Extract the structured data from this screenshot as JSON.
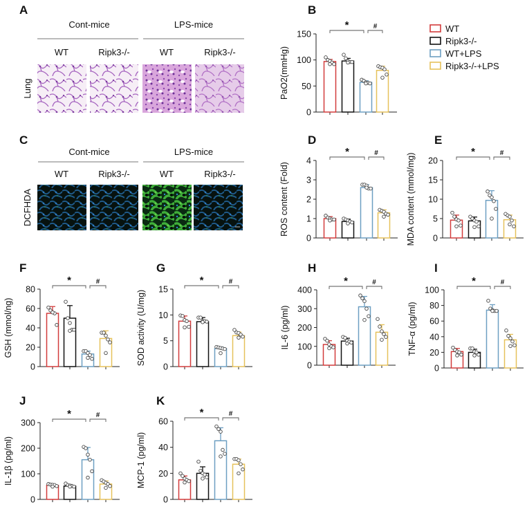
{
  "panels": {
    "A": {
      "label": "A",
      "groups": [
        "Cont-mice",
        "LPS-mice"
      ],
      "columns": [
        "WT",
        "Ripk3-/-",
        "WT",
        "Ripk3-/-"
      ],
      "row_label": "Lung"
    },
    "C": {
      "label": "C",
      "groups": [
        "Cont-mice",
        "LPS-mice"
      ],
      "columns": [
        "WT",
        "Ripk3-/-",
        "WT",
        "Ripk3-/-"
      ],
      "row_label": "DCFHDA"
    }
  },
  "legend": [
    {
      "label": "WT",
      "color": "#d23b3b"
    },
    {
      "label": "Ripk3-/-",
      "color": "#111111"
    },
    {
      "label": "WT+LPS",
      "color": "#6d9fc2"
    },
    {
      "label": "Ripk3-/-+LPS",
      "color": "#e6c15a"
    }
  ],
  "chart_data": [
    {
      "panel": "B",
      "type": "bar",
      "ylabel": "PaO2(mmHg)",
      "ylim": [
        0,
        150
      ],
      "yticks": [
        0,
        50,
        100,
        150
      ],
      "categories": [
        "WT",
        "Ripk3-/-",
        "WT+LPS",
        "Ripk3-/-+LPS"
      ],
      "values": [
        97,
        98,
        57,
        80
      ],
      "errors": [
        4,
        5,
        3,
        8
      ],
      "points": [
        [
          105,
          100,
          98,
          95,
          92,
          92
        ],
        [
          110,
          103,
          98,
          96,
          96,
          95
        ],
        [
          62,
          60,
          57,
          56,
          55,
          55
        ],
        [
          88,
          86,
          85,
          82,
          72,
          66
        ]
      ],
      "significance": [
        {
          "from": 0,
          "to": 2,
          "mark": "*"
        },
        {
          "from": 2,
          "to": 3,
          "mark": "#"
        }
      ]
    },
    {
      "panel": "D",
      "type": "bar",
      "ylabel": "ROS content (Fold)",
      "ylim": [
        0,
        4
      ],
      "yticks": [
        0,
        1,
        2,
        3,
        4
      ],
      "categories": [
        "WT",
        "Ripk3-/-",
        "WT+LPS",
        "Ripk3-/-+LPS"
      ],
      "values": [
        1.0,
        0.85,
        2.6,
        1.3
      ],
      "errors": [
        0.1,
        0.12,
        0.15,
        0.15
      ],
      "points": [
        [
          1.15,
          1.05,
          1.0,
          0.95,
          0.95,
          0.9
        ],
        [
          1.0,
          0.95,
          0.9,
          0.85,
          0.8,
          0.75
        ],
        [
          2.75,
          2.75,
          2.7,
          2.55,
          2.55,
          2.6
        ],
        [
          1.45,
          1.4,
          1.35,
          1.25,
          1.2,
          1.1
        ]
      ],
      "significance": [
        {
          "from": 0,
          "to": 2,
          "mark": "*"
        },
        {
          "from": 2,
          "to": 3,
          "mark": "#"
        }
      ]
    },
    {
      "panel": "E",
      "type": "bar",
      "ylabel": "MDA content (mmol/mg)",
      "ylim": [
        0,
        20
      ],
      "yticks": [
        0,
        5,
        10,
        15,
        20
      ],
      "categories": [
        "WT",
        "Ripk3-/-",
        "WT+LPS",
        "Ripk3-/-+LPS"
      ],
      "values": [
        4.6,
        4.4,
        9.7,
        4.7
      ],
      "errors": [
        1.3,
        1.0,
        2.5,
        1.2
      ],
      "points": [
        [
          6.5,
          5.5,
          4.8,
          4.5,
          3.2,
          3.0
        ],
        [
          5.5,
          5.0,
          4.5,
          4.2,
          3.0,
          2.8
        ],
        [
          12,
          11,
          10.5,
          9.5,
          7.5,
          5.0
        ],
        [
          6.2,
          5.8,
          5.5,
          4.5,
          3.0,
          3.5
        ]
      ],
      "significance": [
        {
          "from": 0,
          "to": 2,
          "mark": "*"
        },
        {
          "from": 2,
          "to": 3,
          "mark": "#"
        }
      ]
    },
    {
      "panel": "F",
      "type": "bar",
      "ylabel": "GSH  (mmol/ng)",
      "ylim": [
        0,
        80
      ],
      "yticks": [
        0,
        20,
        40,
        60,
        80
      ],
      "categories": [
        "WT",
        "Ripk3-/-",
        "WT+LPS",
        "Ripk3-/-+LPS"
      ],
      "values": [
        55,
        50,
        13,
        29
      ],
      "errors": [
        7,
        13,
        3,
        8
      ],
      "points": [
        [
          61,
          58,
          56,
          55,
          43,
          56
        ],
        [
          67,
          50,
          45,
          38,
          38,
          37
        ],
        [
          16,
          16,
          14,
          12,
          8,
          9
        ],
        [
          35,
          35,
          32,
          28,
          25,
          14
        ]
      ],
      "significance": [
        {
          "from": 0,
          "to": 2,
          "mark": "*"
        },
        {
          "from": 2,
          "to": 3,
          "mark": "#"
        }
      ]
    },
    {
      "panel": "G",
      "type": "bar",
      "ylabel": "SOD activity (U/mg)",
      "ylim": [
        0,
        15
      ],
      "yticks": [
        0,
        5,
        10,
        15
      ],
      "categories": [
        "WT",
        "Ripk3-/-",
        "WT+LPS",
        "Ripk3-/-+LPS"
      ],
      "values": [
        8.8,
        8.7,
        3.5,
        6.0
      ],
      "errors": [
        1.0,
        0.8,
        0.3,
        0.7
      ],
      "points": [
        [
          9.9,
          9.8,
          9.0,
          8.8,
          7.7,
          7.6
        ],
        [
          9.5,
          9.5,
          8.8,
          8.8,
          8.7,
          8.6
        ],
        [
          3.8,
          3.7,
          3.6,
          3.5,
          3.4,
          2.6
        ],
        [
          7.1,
          6.6,
          6.5,
          6.2,
          5.8,
          5.6
        ]
      ],
      "significance": [
        {
          "from": 0,
          "to": 2,
          "mark": "*"
        },
        {
          "from": 2,
          "to": 3,
          "mark": "#"
        }
      ]
    },
    {
      "panel": "H",
      "type": "bar",
      "ylabel": "IL-6 (pg/ml)",
      "ylim": [
        0,
        400
      ],
      "yticks": [
        0,
        100,
        200,
        300,
        400
      ],
      "categories": [
        "WT",
        "Ripk3-/-",
        "WT+LPS",
        "Ripk3-/-+LPS"
      ],
      "values": [
        110,
        128,
        310,
        175
      ],
      "errors": [
        20,
        15,
        55,
        40
      ],
      "points": [
        [
          140,
          130,
          110,
          100,
          95,
          90
        ],
        [
          150,
          145,
          130,
          125,
          120,
          115
        ],
        [
          370,
          355,
          340,
          300,
          260,
          240
        ],
        [
          245,
          205,
          180,
          165,
          150,
          135
        ]
      ],
      "significance": [
        {
          "from": 0,
          "to": 2,
          "mark": "*"
        },
        {
          "from": 2,
          "to": 3,
          "mark": "#"
        }
      ]
    },
    {
      "panel": "I",
      "type": "bar",
      "ylabel": "TNF-α (pg/ml)",
      "ylim": [
        0,
        100
      ],
      "yticks": [
        0,
        20,
        40,
        60,
        80,
        100
      ],
      "categories": [
        "WT",
        "Ripk3-/-",
        "WT+LPS",
        "Ripk3-/-+LPS"
      ],
      "values": [
        21,
        20,
        74,
        36
      ],
      "errors": [
        4,
        4,
        7,
        7
      ],
      "points": [
        [
          26,
          23,
          21,
          20,
          17,
          16
        ],
        [
          25,
          25,
          21,
          20,
          17,
          16
        ],
        [
          86,
          76,
          74,
          73,
          73,
          73
        ],
        [
          48,
          41,
          38,
          34,
          29,
          28
        ]
      ],
      "significance": [
        {
          "from": 0,
          "to": 2,
          "mark": "*"
        },
        {
          "from": 2,
          "to": 3,
          "mark": "#"
        }
      ]
    },
    {
      "panel": "J",
      "type": "bar",
      "ylabel": "IL-1β (pg/ml)",
      "ylim": [
        0,
        300
      ],
      "yticks": [
        0,
        100,
        200,
        300
      ],
      "categories": [
        "WT",
        "Ripk3-/-",
        "WT+LPS",
        "Ripk3-/-+LPS"
      ],
      "values": [
        55,
        52,
        155,
        60
      ],
      "errors": [
        5,
        6,
        48,
        12
      ],
      "points": [
        [
          60,
          58,
          57,
          56,
          52,
          50
        ],
        [
          62,
          56,
          54,
          52,
          50,
          50
        ],
        [
          205,
          200,
          175,
          155,
          110,
          85
        ],
        [
          75,
          70,
          65,
          60,
          52,
          45
        ]
      ],
      "significance": [
        {
          "from": 0,
          "to": 2,
          "mark": "*"
        },
        {
          "from": 2,
          "to": 3,
          "mark": "#"
        }
      ]
    },
    {
      "panel": "K",
      "type": "bar",
      "ylabel": "MCP-1 (pg/ml)",
      "ylim": [
        0,
        60
      ],
      "yticks": [
        0,
        20,
        40,
        60
      ],
      "categories": [
        "WT",
        "Ripk3-/-",
        "WT+LPS",
        "Ripk3-/-+LPS"
      ],
      "values": [
        15,
        20,
        45,
        27
      ],
      "errors": [
        3,
        5,
        10,
        4
      ],
      "points": [
        [
          20,
          18,
          16,
          15,
          14,
          13
        ],
        [
          29,
          22,
          20,
          19,
          17,
          16
        ],
        [
          56,
          54,
          52,
          38,
          35,
          33
        ],
        [
          31,
          31,
          30,
          27,
          23,
          20
        ]
      ],
      "significance": [
        {
          "from": 0,
          "to": 2,
          "mark": "*"
        },
        {
          "from": 2,
          "to": 3,
          "mark": "#"
        }
      ]
    }
  ]
}
